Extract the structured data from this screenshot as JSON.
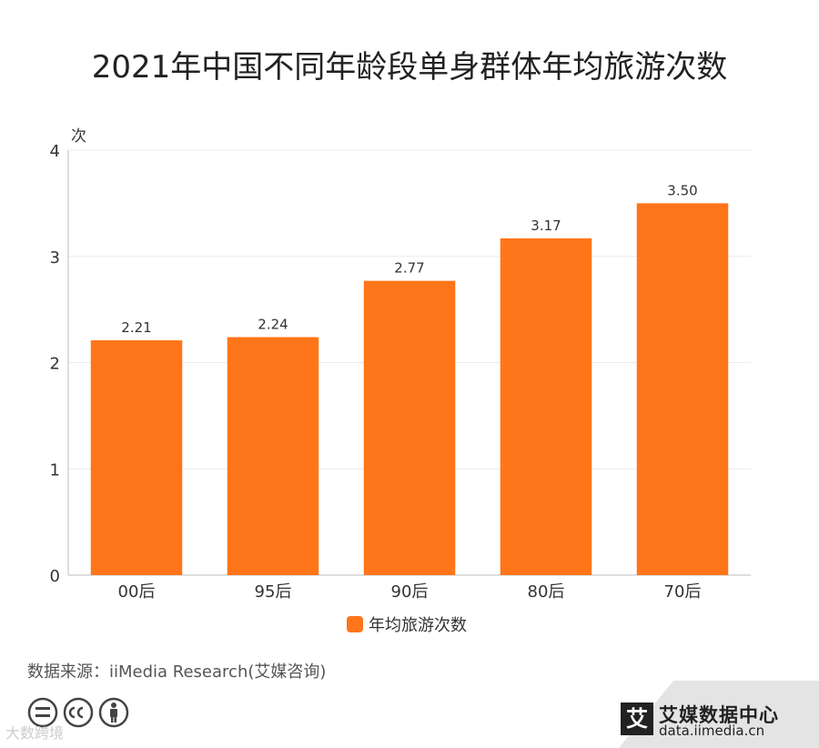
{
  "title": "2021年中国不同年龄段单身群体年均旅游次数",
  "source": "数据来源：iiMedia Research(艾媒咨询)",
  "watermark": "大数跨境",
  "brand": {
    "mark": "艾",
    "name": "艾媒数据中心",
    "url": "data.iimedia.cn"
  },
  "colors": {
    "bar": "#FF7519",
    "grid": "#EBEBEB",
    "axis": "#BDBDBD",
    "text": "#333333"
  },
  "chart_data": {
    "type": "bar",
    "title": "2021年中国不同年龄段单身群体年均旅游次数",
    "ylabel": "次",
    "xlabel": "",
    "categories": [
      "00后",
      "95后",
      "90后",
      "80后",
      "70后"
    ],
    "series": [
      {
        "name": "年均旅游次数",
        "values": [
          2.21,
          2.24,
          2.77,
          3.17,
          3.5
        ],
        "labels": [
          "2.21",
          "2.24",
          "2.77",
          "3.17",
          "3.50"
        ]
      }
    ],
    "ylim": [
      0,
      4
    ],
    "yticks": [
      "0",
      "1",
      "2",
      "3",
      "4"
    ],
    "grid": true,
    "legend_position": "bottom"
  }
}
